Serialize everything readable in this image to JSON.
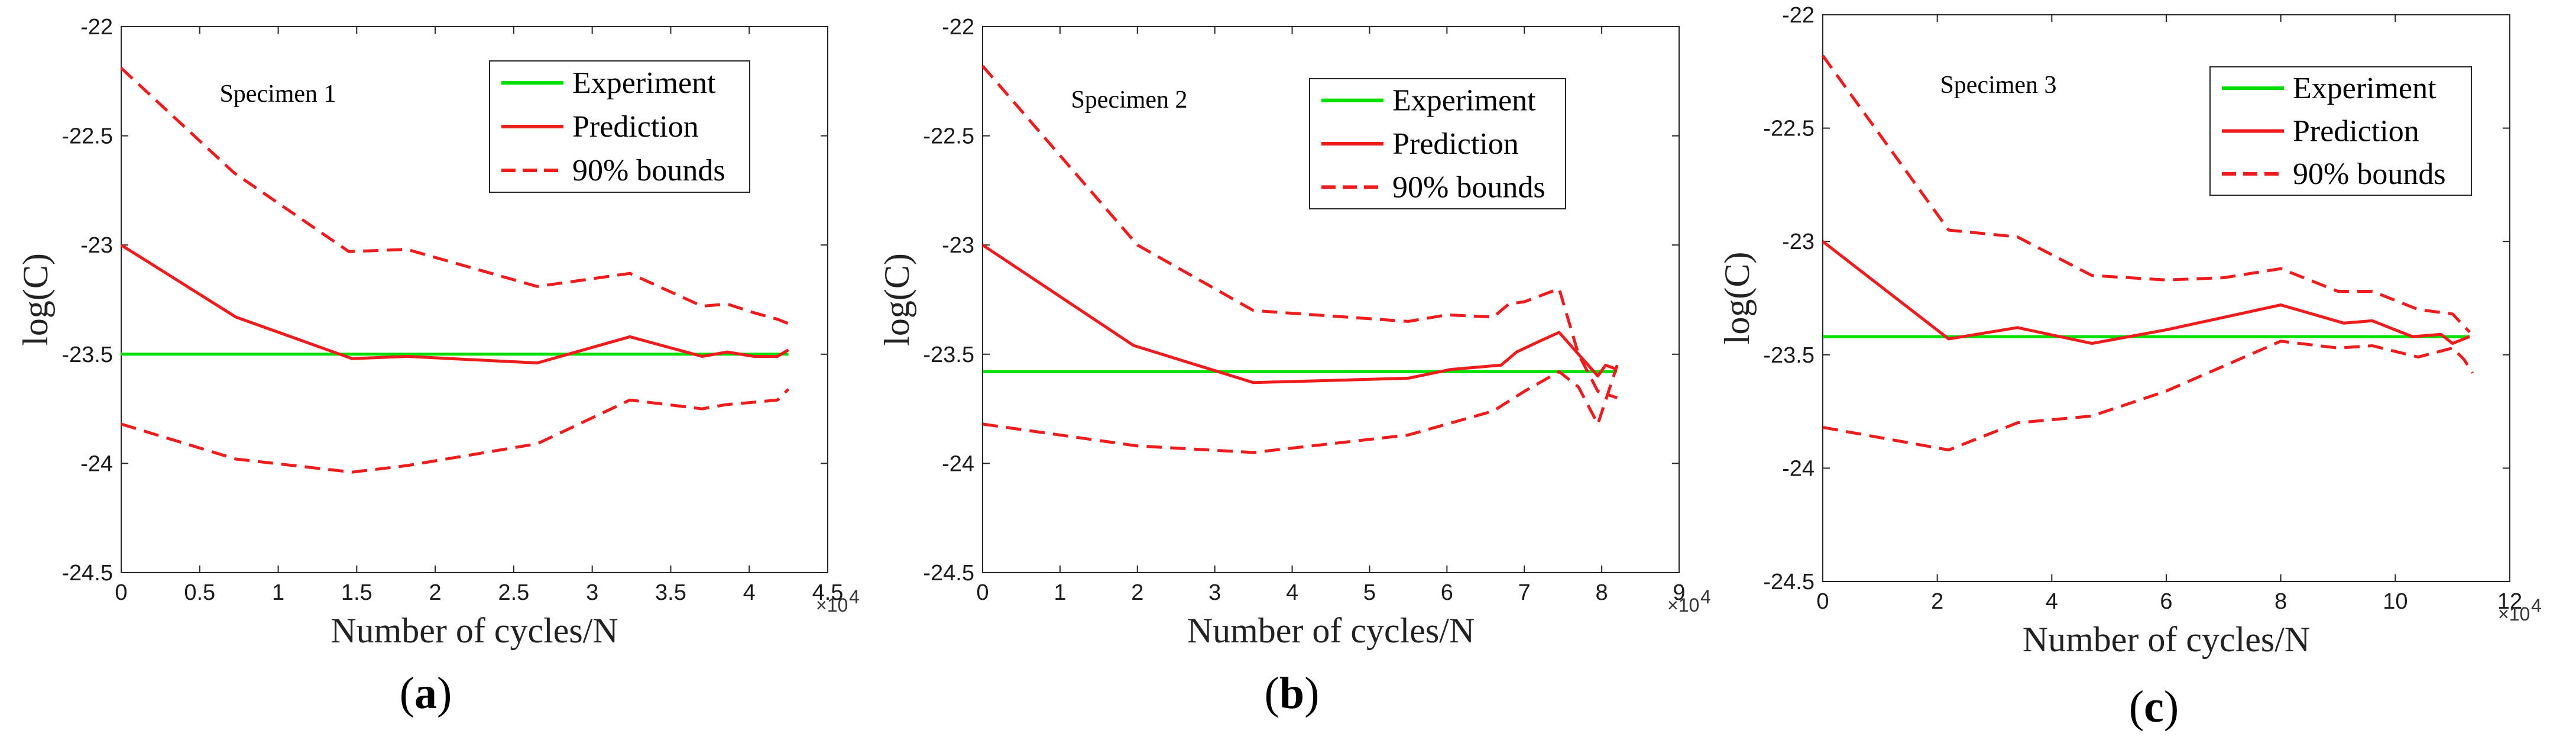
{
  "colors": {
    "experiment": "#00e000",
    "prediction": "#ee1c1c",
    "bounds": "#ee1c1c",
    "axis": "#262626",
    "background": "#ffffff"
  },
  "legend_labels": {
    "experiment": "Experiment",
    "prediction": "Prediction",
    "bounds": "90% bounds"
  },
  "chart_data": [
    {
      "type": "line",
      "panel_label": "a",
      "annotation": "Specimen 1",
      "xlabel": "Number of cycles/N",
      "ylabel": "log(C)",
      "x_multiplier": "×10",
      "x_multiplier_exp": "4",
      "xlim": [
        0,
        4.5
      ],
      "ylim": [
        -24.5,
        -22
      ],
      "xticks": [
        "0",
        "0.5",
        "1",
        "1.5",
        "2",
        "2.5",
        "3",
        "3.5",
        "4",
        "4.5"
      ],
      "yticks": [
        "-22",
        "-22.5",
        "-23",
        "-23.5",
        "-24",
        "-24.5"
      ],
      "legend_position": "top-right",
      "series": [
        {
          "name": "Experiment",
          "style": "solid",
          "x": [
            0,
            4.25
          ],
          "y": [
            -23.5,
            -23.5
          ]
        },
        {
          "name": "Prediction",
          "style": "solid",
          "x": [
            0,
            0.73,
            1.47,
            1.82,
            2.65,
            3.24,
            3.7,
            3.86,
            4.03,
            4.18,
            4.25
          ],
          "y": [
            -23.0,
            -23.33,
            -23.52,
            -23.51,
            -23.54,
            -23.42,
            -23.51,
            -23.49,
            -23.51,
            -23.51,
            -23.48
          ]
        },
        {
          "name": "90% bounds",
          "style": "dashed",
          "x": [
            0,
            0.72,
            1.45,
            1.82,
            2.65,
            3.24,
            3.7,
            3.86,
            4.03,
            4.18,
            4.25
          ],
          "y": [
            -22.19,
            -22.67,
            -23.03,
            -23.02,
            -23.19,
            -23.13,
            -23.28,
            -23.27,
            -23.31,
            -23.34,
            -23.36
          ]
        },
        {
          "name": "90% bounds (lower)",
          "style": "dashed",
          "x": [
            0,
            0.73,
            1.47,
            1.82,
            2.65,
            3.24,
            3.7,
            3.86,
            4.03,
            4.18,
            4.25
          ],
          "y": [
            -23.82,
            -23.98,
            -24.04,
            -24.01,
            -23.91,
            -23.71,
            -23.75,
            -23.73,
            -23.72,
            -23.71,
            -23.66
          ]
        }
      ]
    },
    {
      "type": "line",
      "panel_label": "b",
      "annotation": "Specimen 2",
      "xlabel": "Number of cycles/N",
      "ylabel": "log(C)",
      "x_multiplier": "×10",
      "x_multiplier_exp": "4",
      "xlim": [
        0,
        9
      ],
      "ylim": [
        -24.5,
        -22
      ],
      "xticks": [
        "0",
        "1",
        "2",
        "3",
        "4",
        "5",
        "6",
        "7",
        "8",
        "9"
      ],
      "yticks": [
        "-22",
        "-22.5",
        "-23",
        "-23.5",
        "-24",
        "-24.5"
      ],
      "legend_position": "top-right",
      "series": [
        {
          "name": "Experiment",
          "style": "solid",
          "x": [
            0,
            8.2
          ],
          "y": [
            -23.58,
            -23.58
          ]
        },
        {
          "name": "Prediction",
          "style": "solid",
          "x": [
            0,
            1.95,
            3.5,
            5.5,
            6.05,
            6.7,
            6.9,
            7.2,
            7.45,
            7.7,
            7.95,
            8.05,
            8.2
          ],
          "y": [
            -23.0,
            -23.46,
            -23.63,
            -23.61,
            -23.57,
            -23.55,
            -23.49,
            -23.44,
            -23.4,
            -23.5,
            -23.6,
            -23.55,
            -23.57
          ]
        },
        {
          "name": "90% bounds",
          "style": "dashed",
          "x": [
            0,
            2.0,
            3.5,
            5.5,
            6.0,
            6.6,
            6.8,
            7.0,
            7.45,
            7.7,
            7.95,
            8.2
          ],
          "y": [
            -22.18,
            -23.0,
            -23.3,
            -23.35,
            -23.32,
            -23.33,
            -23.27,
            -23.26,
            -23.2,
            -23.5,
            -23.67,
            -23.7
          ]
        },
        {
          "name": "90% bounds (lower)",
          "style": "dashed",
          "x": [
            0,
            2.0,
            3.5,
            5.5,
            6.6,
            7.0,
            7.45,
            7.7,
            7.95,
            8.2
          ],
          "y": [
            -23.82,
            -23.92,
            -23.95,
            -23.87,
            -23.76,
            -23.67,
            -23.58,
            -23.65,
            -23.82,
            -23.55
          ]
        }
      ]
    },
    {
      "type": "line",
      "panel_label": "c",
      "annotation": "Specimen 3",
      "xlabel": "Number of cycles/N",
      "ylabel": "log(C)",
      "x_multiplier": "×10",
      "x_multiplier_exp": "4",
      "xlim": [
        0,
        12
      ],
      "ylim": [
        -24.5,
        -22
      ],
      "xticks": [
        "0",
        "2",
        "4",
        "6",
        "8",
        "10",
        "12"
      ],
      "yticks": [
        "-22",
        "-22.5",
        "-23",
        "-23.5",
        "-24",
        "-24.5"
      ],
      "legend_position": "top-right",
      "series": [
        {
          "name": "Experiment",
          "style": "solid",
          "x": [
            0,
            11.3
          ],
          "y": [
            -23.42,
            -23.42
          ]
        },
        {
          "name": "Prediction",
          "style": "solid",
          "x": [
            0,
            2.2,
            3.4,
            4.7,
            6.0,
            8.0,
            9.1,
            9.6,
            10.3,
            10.8,
            11.0,
            11.3
          ],
          "y": [
            -23.0,
            -23.43,
            -23.38,
            -23.45,
            -23.39,
            -23.28,
            -23.36,
            -23.35,
            -23.42,
            -23.41,
            -23.45,
            -23.42
          ]
        },
        {
          "name": "90% bounds",
          "style": "dashed",
          "x": [
            0,
            2.2,
            3.4,
            4.7,
            6.0,
            7.0,
            8.0,
            9.0,
            9.6,
            10.4,
            11.0,
            11.3
          ],
          "y": [
            -22.18,
            -22.95,
            -22.98,
            -23.15,
            -23.17,
            -23.16,
            -23.12,
            -23.22,
            -23.22,
            -23.3,
            -23.32,
            -23.4
          ]
        },
        {
          "name": "90% bounds (lower)",
          "style": "dashed",
          "x": [
            0,
            2.2,
            3.4,
            4.7,
            6.0,
            7.0,
            8.0,
            9.0,
            9.6,
            10.4,
            11.0,
            11.2,
            11.35
          ],
          "y": [
            -23.82,
            -23.92,
            -23.8,
            -23.77,
            -23.66,
            -23.55,
            -23.44,
            -23.47,
            -23.46,
            -23.51,
            -23.47,
            -23.52,
            -23.58
          ]
        }
      ]
    }
  ]
}
